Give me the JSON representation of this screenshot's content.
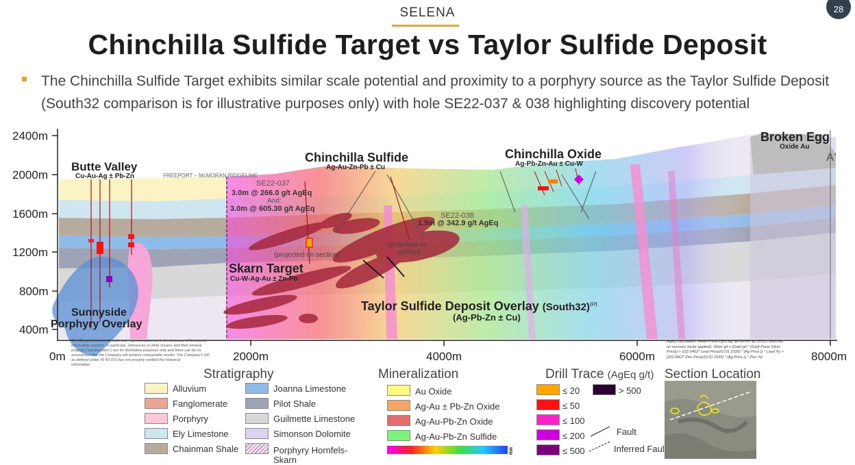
{
  "header": {
    "company": "SELENA",
    "page_number": "28",
    "title": "Chinchilla Sulfide Target vs Taylor Sulfide Deposit",
    "bullet": "The Chinchilla Sulfide Target exhibits similar scale potential and proximity to a porphyry source as the Taylor Sulfide Deposit (South32 comparison is for illustrative purposes only) with hole SE22-037 & 038 highlighting discovery potential"
  },
  "section": {
    "y_axis_labels": [
      "2400m",
      "2000m",
      "1600m",
      "1200m",
      "800m",
      "400m"
    ],
    "x_axis_labels": [
      "0m",
      "2000m",
      "4000m",
      "6000m",
      "8000m"
    ],
    "end_label": "A'",
    "targets": {
      "butte_valley": {
        "name": "Butte Valley",
        "sub": "Cu-Au-Ag ± Pb-Zn"
      },
      "chinchilla_sulfide": {
        "name": "Chinchilla Sulfide",
        "sub": "Ag-Au-Zn-Pb ± Cu"
      },
      "chinchilla_oxide": {
        "name": "Chinchilla Oxide",
        "sub": "Ag-Pb-Zn-Au ± Cu-W"
      },
      "broken_egg": {
        "name": "Broken Egg",
        "sub": "Oxide Au"
      },
      "skarn": {
        "name": "Skarn Target",
        "sub": "Cu-W-Ag-Au ± Zn-Pb"
      },
      "sunnyside": {
        "line1": "Sunnyside",
        "line2": "Porphyry Overlay"
      },
      "taylor": {
        "name": "Taylor Sulfide Deposit Overlay",
        "suffix": "(South32)",
        "ref": "(17)",
        "sub": "(Ag-Pb-Zn ± Cu)"
      }
    },
    "ridgeline": "FREEPORT – McMORAN RIDGELINE",
    "holes": {
      "se22_037": {
        "name": "SE22-037",
        "int1": "3.0m @ 266.0 g/t AgEq",
        "and": "And:",
        "int2": "3.0m @ 605.30 g/t AgEq",
        "note": "(projected on section)"
      },
      "se22_038": {
        "name": "SE22-038",
        "int1": "1.5m @ 342.9 g/t AgEq",
        "note1": "(projected on",
        "note2": "section)"
      }
    },
    "disclaimer": [
      "The Company does not make any representation as to the accuracy of third-party",
      "information sources. In particular, references to other issuers and their mineral",
      "projects (\"comparables\") are for illustrative purposes only and there can be no",
      "assurances that the Company will achieve comparable results. The Company's QP,",
      "as defined under NI 43-101 has not properly verified the historical",
      "information"
    ],
    "ageq_note": [
      "AgEq Calculation: Metal Prices ($20 Ag, $0.90 Pb, $1.25 Zn, 1800 Au,",
      "no recovery factor applied): Silver g/t + (Gold g/t * (Gold Price/ Silver",
      "Price)) + ((22.0462* Lead Price)/(1/31.1035) * (Ag Price )) * Lead %) +",
      "((22.0462* Zinc Price)/(1/31.1035) * (Ag Price )) * Zinc %)"
    ]
  },
  "legend": {
    "stratigraphy": {
      "title": "Stratigraphy",
      "col1": [
        {
          "label": "Alluvium",
          "color": "#fbf3c4"
        },
        {
          "label": "Fanglomerate",
          "color": "#eca694"
        },
        {
          "label": "Porphyry",
          "color": "#f9cad6"
        },
        {
          "label": "Ely Limestone",
          "color": "#cde6f0"
        },
        {
          "label": "Chainman Shale",
          "color": "#b7ab9d"
        }
      ],
      "col2": [
        {
          "label": "Joanna Limestone",
          "color": "#8fbbe8"
        },
        {
          "label": "Pilot Shale",
          "color": "#9fa3b6"
        },
        {
          "label": "Guilmette Limestone",
          "color": "#d8d8d8"
        },
        {
          "label": "Simonson Dolomite",
          "color": "#dcd4ec"
        },
        {
          "label": "Porphyry Hornfels-",
          "label2": "Skarn",
          "color": "hatch"
        }
      ]
    },
    "mineralization": {
      "title": "Mineralization",
      "items": [
        {
          "label": "Au Oxide",
          "color": "#fdfb7a"
        },
        {
          "label": "Ag-Au ± Pb-Zn Oxide",
          "color": "#f2a668"
        },
        {
          "label": "Ag-Au-Pb-Zn Oxide",
          "color": "#e96a6a"
        },
        {
          "label": "Ag-Au-Pb-Zn Sulfide",
          "color": "#7cf27c"
        }
      ],
      "rmi_label": "RMI"
    },
    "drill_trace": {
      "title": "Drill Trace",
      "unit": "(AgEq g/t)",
      "items": [
        {
          "label": "≤ 20",
          "color": "#ffa500"
        },
        {
          "label": "≤ 50",
          "color": "#ff1010"
        },
        {
          "label": "≤ 100",
          "color": "#ff22c8"
        },
        {
          "label": "≤ 200",
          "color": "#d000e0"
        },
        {
          "label": "≤ 500",
          "color": "#7a0080"
        },
        {
          "label": "> 500",
          "color": "#2a0030"
        }
      ],
      "fault": "Fault",
      "inferred_fault": "Inferred Fault"
    },
    "section_location": {
      "title": "Section Location"
    }
  }
}
